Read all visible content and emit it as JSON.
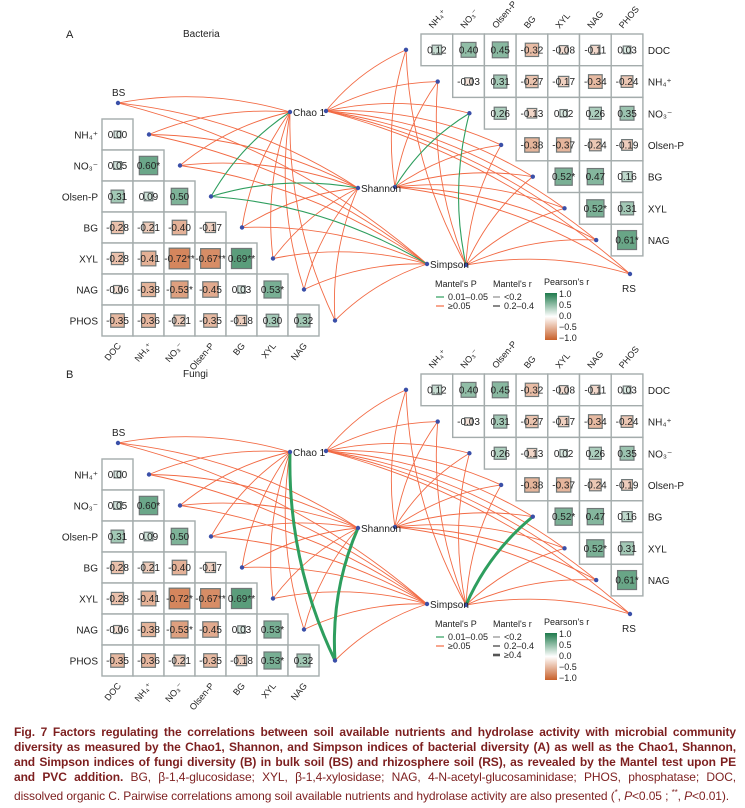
{
  "colors": {
    "positive": "#1f7a4c",
    "negative": "#c8602a",
    "link_significant": "#2e9e5e",
    "link_nonsignificant": "#f26a44",
    "node": "#3a4fa8",
    "caption": "#7d1f1f"
  },
  "panels": [
    {
      "letter": "A",
      "title": "Bacteria",
      "bs_label": "BS",
      "rs_label": "RS",
      "indices": [
        "Chao 1",
        "Shannon",
        "Simpson"
      ],
      "left_matrix": {
        "row_labels": [
          "NH₄⁺",
          "NO₃⁻",
          "Olsen-P",
          "BG",
          "XYL",
          "NAG",
          "PHOS"
        ],
        "col_labels": [
          "DOC",
          "NH₄⁺",
          "NO₃⁻",
          "Olsen-P",
          "BG",
          "XYL",
          "NAG"
        ],
        "values": [
          [
            "0.00"
          ],
          [
            "0.05",
            "0.60*"
          ],
          [
            "0.31",
            "0.09",
            "0.50"
          ],
          [
            "-0.28",
            "-0.21",
            "-0.40",
            "-0.17"
          ],
          [
            "-0.28",
            "-0.41",
            "-0.72**",
            "-0.67**",
            "0.69**"
          ],
          [
            "-0.06",
            "-0.38",
            "-0.53*",
            "-0.45",
            "0.03",
            "0.53*"
          ],
          [
            "-0.35",
            "-0.36",
            "-0.21",
            "-0.35",
            "-0.18",
            "0.30",
            "0.32"
          ]
        ]
      },
      "right_matrix": {
        "row_labels": [
          "DOC",
          "NH₄⁺",
          "NO₃⁻",
          "Olsen-P",
          "BG",
          "XYL",
          "NAG"
        ],
        "col_labels": [
          "NH₄⁺",
          "NO₃⁻",
          "Olsen-P",
          "BG",
          "XYL",
          "NAG",
          "PHOS"
        ],
        "values": [
          [
            "0.12",
            "0.40",
            "0.45",
            "-0.32",
            "-0.08",
            "-0.11",
            "0.03"
          ],
          [
            "-0.03",
            "0.31",
            "-0.27",
            "-0.17",
            "-0.34",
            "-0.24"
          ],
          [
            "0.26",
            "-0.13",
            "0.02",
            "0.26",
            "0.35"
          ],
          [
            "-0.38",
            "-0.37",
            "-0.24",
            "-0.19"
          ],
          [
            "0.52*",
            "0.47",
            "0.16"
          ],
          [
            "0.52*",
            "0.31"
          ],
          [
            "0.61*"
          ]
        ]
      },
      "significant_links": [
        {
          "soil": "BS",
          "variable": "Olsen-P",
          "index": "Chao 1",
          "mantel_p": "0.01–0.05",
          "mantel_r": "<0.2"
        },
        {
          "soil": "BS",
          "variable": "Olsen-P",
          "index": "Shannon",
          "mantel_p": "0.01–0.05",
          "mantel_r": "<0.2"
        },
        {
          "soil": "BS",
          "variable": "Olsen-P",
          "index": "Simpson",
          "mantel_p": "0.01–0.05",
          "mantel_r": "<0.2"
        },
        {
          "soil": "RS",
          "variable": "NO₃⁻",
          "index": "Shannon",
          "mantel_p": "0.01–0.05",
          "mantel_r": "<0.2"
        },
        {
          "soil": "RS",
          "variable": "NO₃⁻",
          "index": "Simpson",
          "mantel_p": "0.01–0.05",
          "mantel_r": "<0.2"
        }
      ],
      "legend": {
        "mantel_p_title": "Mantel's P",
        "mantel_p_items": [
          "0.01–0.05",
          "≥0.05"
        ],
        "mantel_r_title": "Mantel's r",
        "mantel_r_items": [
          "<0.2",
          "0.2–0.4"
        ],
        "pearson_title": "Pearson's r",
        "pearson_ticks": [
          "1.0",
          "0.5",
          "0.0",
          "−0.5",
          "−1.0"
        ]
      }
    },
    {
      "letter": "B",
      "title": "Fungi",
      "bs_label": "BS",
      "rs_label": "RS",
      "indices": [
        "Chao 1",
        "Shannon",
        "Simpson"
      ],
      "left_matrix": {
        "row_labels": [
          "NH₄⁺",
          "NO₃⁻",
          "Olsen-P",
          "BG",
          "XYL",
          "NAG",
          "PHOS"
        ],
        "col_labels": [
          "DOC",
          "NH₄⁺",
          "NO₃⁻",
          "Olsen-P",
          "BG",
          "XYL",
          "NAG"
        ],
        "values": [
          [
            "0.00"
          ],
          [
            "0.05",
            "0.60*"
          ],
          [
            "0.31",
            "0.09",
            "0.50"
          ],
          [
            "-0.28",
            "-0.21",
            "-0.40",
            "-0.17"
          ],
          [
            "-0.28",
            "-0.41",
            "-0.72*",
            "-0.67**",
            "0.69**"
          ],
          [
            "-0.06",
            "-0.38",
            "-0.53*",
            "-0.45",
            "0.03",
            "0.53*"
          ],
          [
            "-0.35",
            "-0.36",
            "-0.21",
            "-0.35",
            "-0.18",
            "0.53*",
            "0.32"
          ]
        ]
      },
      "right_matrix": {
        "row_labels": [
          "DOC",
          "NH₄⁺",
          "NO₃⁻",
          "Olsen-P",
          "BG",
          "XYL",
          "NAG"
        ],
        "col_labels": [
          "NH₄⁺",
          "NO₃⁻",
          "Olsen-P",
          "BG",
          "XYL",
          "NAG",
          "PHOS"
        ],
        "values": [
          [
            "0.12",
            "0.40",
            "0.45",
            "-0.32",
            "-0.08",
            "-0.11",
            "0.03"
          ],
          [
            "-0.03",
            "0.31",
            "-0.27",
            "-0.17",
            "-0.34",
            "-0.24"
          ],
          [
            "0.26",
            "-0.13",
            "0.02",
            "0.26",
            "0.35"
          ],
          [
            "-0.38",
            "-0.37",
            "-0.24",
            "-0.19"
          ],
          [
            "0.52*",
            "0.47",
            "0.16"
          ],
          [
            "0.52*",
            "0.31"
          ],
          [
            "0.61*"
          ]
        ]
      },
      "significant_links": [
        {
          "soil": "BS",
          "variable": "PHOS",
          "index": "Chao 1",
          "mantel_p": "0.01–0.05",
          "mantel_r": "≥0.4"
        },
        {
          "soil": "BS",
          "variable": "PHOS",
          "index": "Shannon",
          "mantel_p": "0.01–0.05",
          "mantel_r": "≥0.4"
        },
        {
          "soil": "RS",
          "variable": "BG",
          "index": "Simpson",
          "mantel_p": "0.01–0.05",
          "mantel_r": "≥0.4"
        }
      ],
      "legend": {
        "mantel_p_title": "Mantel's P",
        "mantel_p_items": [
          "0.01–0.05",
          "≥0.05"
        ],
        "mantel_r_title": "Mantel's r",
        "mantel_r_items": [
          "<0.2",
          "0.2–0.4",
          "≥0.4"
        ],
        "pearson_title": "Pearson's r",
        "pearson_ticks": [
          "1.0",
          "0.5",
          "0.0",
          "−0.5",
          "−1.0"
        ]
      }
    }
  ],
  "caption": {
    "bold": "Fig. 7  Factors regulating the correlations between soil available nutrients and hydrolase activity with microbial community diversity as measured by the Chao1, Shannon, and Simpson indices of bacterial diversity (A) as well as the Chao1, Shannon, and Simpson indices of fungi diversity (B) in bulk soil (BS) and rhizosphere soil (RS), as revealed by the Mantel test upon PE and PVC addition.",
    "normal": " BG, β-1,4-glucosidase; XYL, β-1,4-xylosidase; NAG, 4-N-acetyl-glucosaminidase; PHOS, phosphatase; DOC, dissolved organic C.  Pairwise correlations among soil available nutrients and hydrolase activity are also presented (",
    "sig1": "*",
    "sep1": ", ",
    "p1": "P",
    "thr1": "<0.05 ; ",
    "sig2": "**",
    "sep2": ", ",
    "p2": "P",
    "thr2": "<0.01)."
  }
}
